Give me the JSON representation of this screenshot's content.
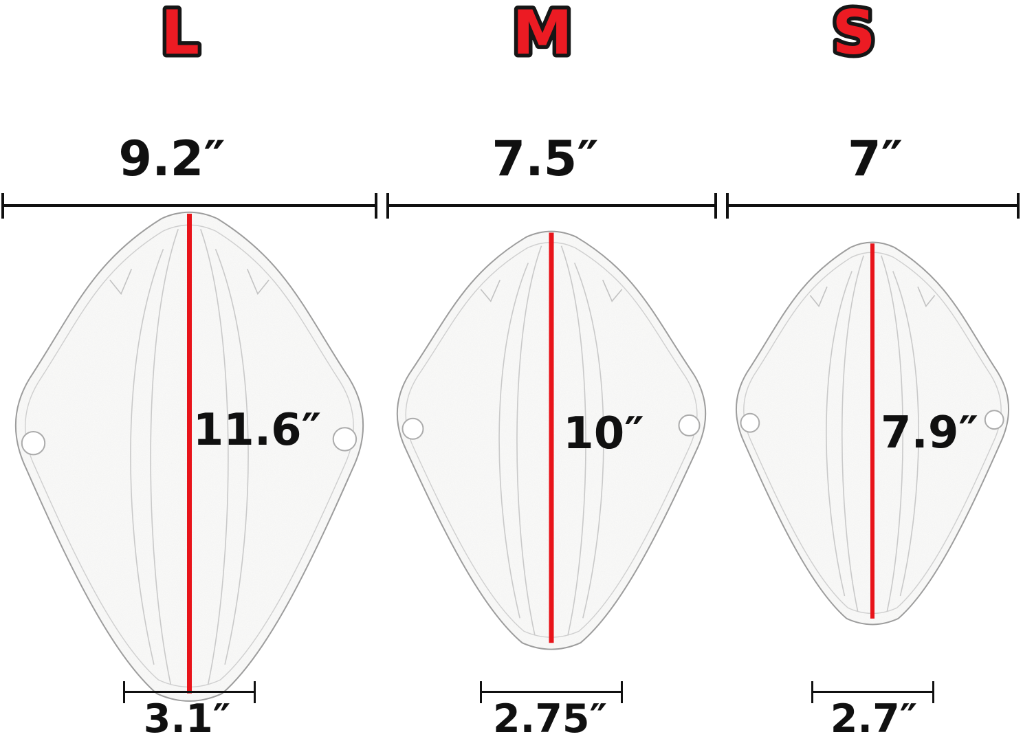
{
  "sizes": [
    {
      "label": "L",
      "top_width": "9.2″",
      "length": "11.6″",
      "bottom_width": "3.1″"
    },
    {
      "label": "M",
      "top_width": "7.5″",
      "length": "10″",
      "bottom_width": "2.75″"
    },
    {
      "label": "S",
      "top_width": "7″",
      "length": "7.9″",
      "bottom_width": "2.7″"
    }
  ],
  "colors": {
    "size_letter_red": "#ec1b23",
    "center_line_red": "#e8141a",
    "measurement_ink": "#101010"
  }
}
